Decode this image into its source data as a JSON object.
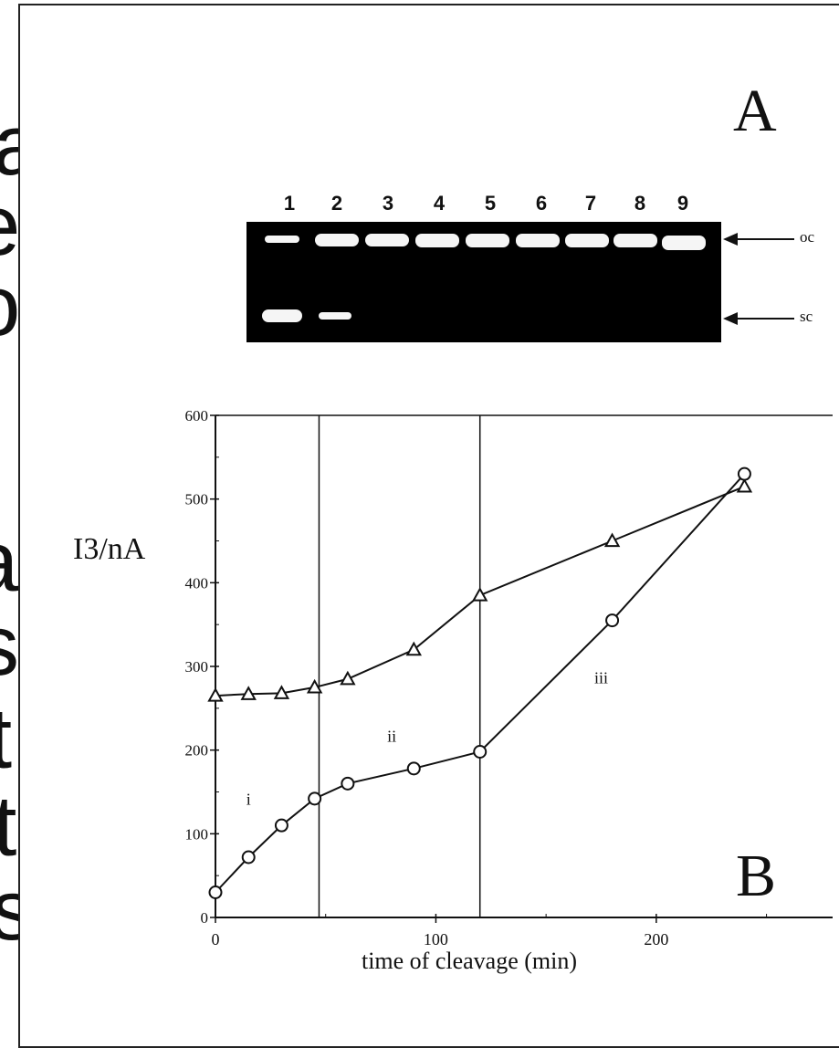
{
  "background_text_fragments": [
    "a",
    "e",
    "o",
    "a",
    "s",
    "st",
    "ot",
    "s"
  ],
  "figure": {
    "panel_a_label": "A",
    "panel_b_label": "B",
    "gel": {
      "lanes": [
        "1",
        "2",
        "3",
        "4",
        "5",
        "6",
        "7",
        "8",
        "9"
      ],
      "labels": [
        "oc",
        "sc"
      ]
    }
  },
  "chart_data": {
    "type": "line",
    "xlabel": "time of cleavage (min)",
    "ylabel": "I3/nA",
    "xlim": [
      0,
      280
    ],
    "ylim": [
      0,
      600
    ],
    "x_ticks": [
      0,
      100,
      200
    ],
    "y_ticks": [
      0,
      100,
      200,
      300,
      400,
      500,
      600
    ],
    "vertical_lines": [
      47,
      120
    ],
    "region_labels": [
      {
        "text": "i",
        "x": 15,
        "y": 135
      },
      {
        "text": "ii",
        "x": 80,
        "y": 210
      },
      {
        "text": "iii",
        "x": 175,
        "y": 280
      }
    ],
    "series": [
      {
        "marker": "triangle",
        "x": [
          0,
          15,
          30,
          45,
          60,
          90,
          120,
          180,
          240
        ],
        "y": [
          265,
          267,
          268,
          275,
          285,
          320,
          385,
          450,
          515
        ]
      },
      {
        "marker": "circle",
        "x": [
          0,
          15,
          30,
          45,
          60,
          90,
          120,
          180,
          240
        ],
        "y": [
          30,
          72,
          110,
          142,
          160,
          178,
          198,
          355,
          530
        ]
      }
    ],
    "grid": false,
    "colors": {
      "ink": "#111111",
      "gel": "#000000",
      "band": "#f5f5f5"
    }
  }
}
